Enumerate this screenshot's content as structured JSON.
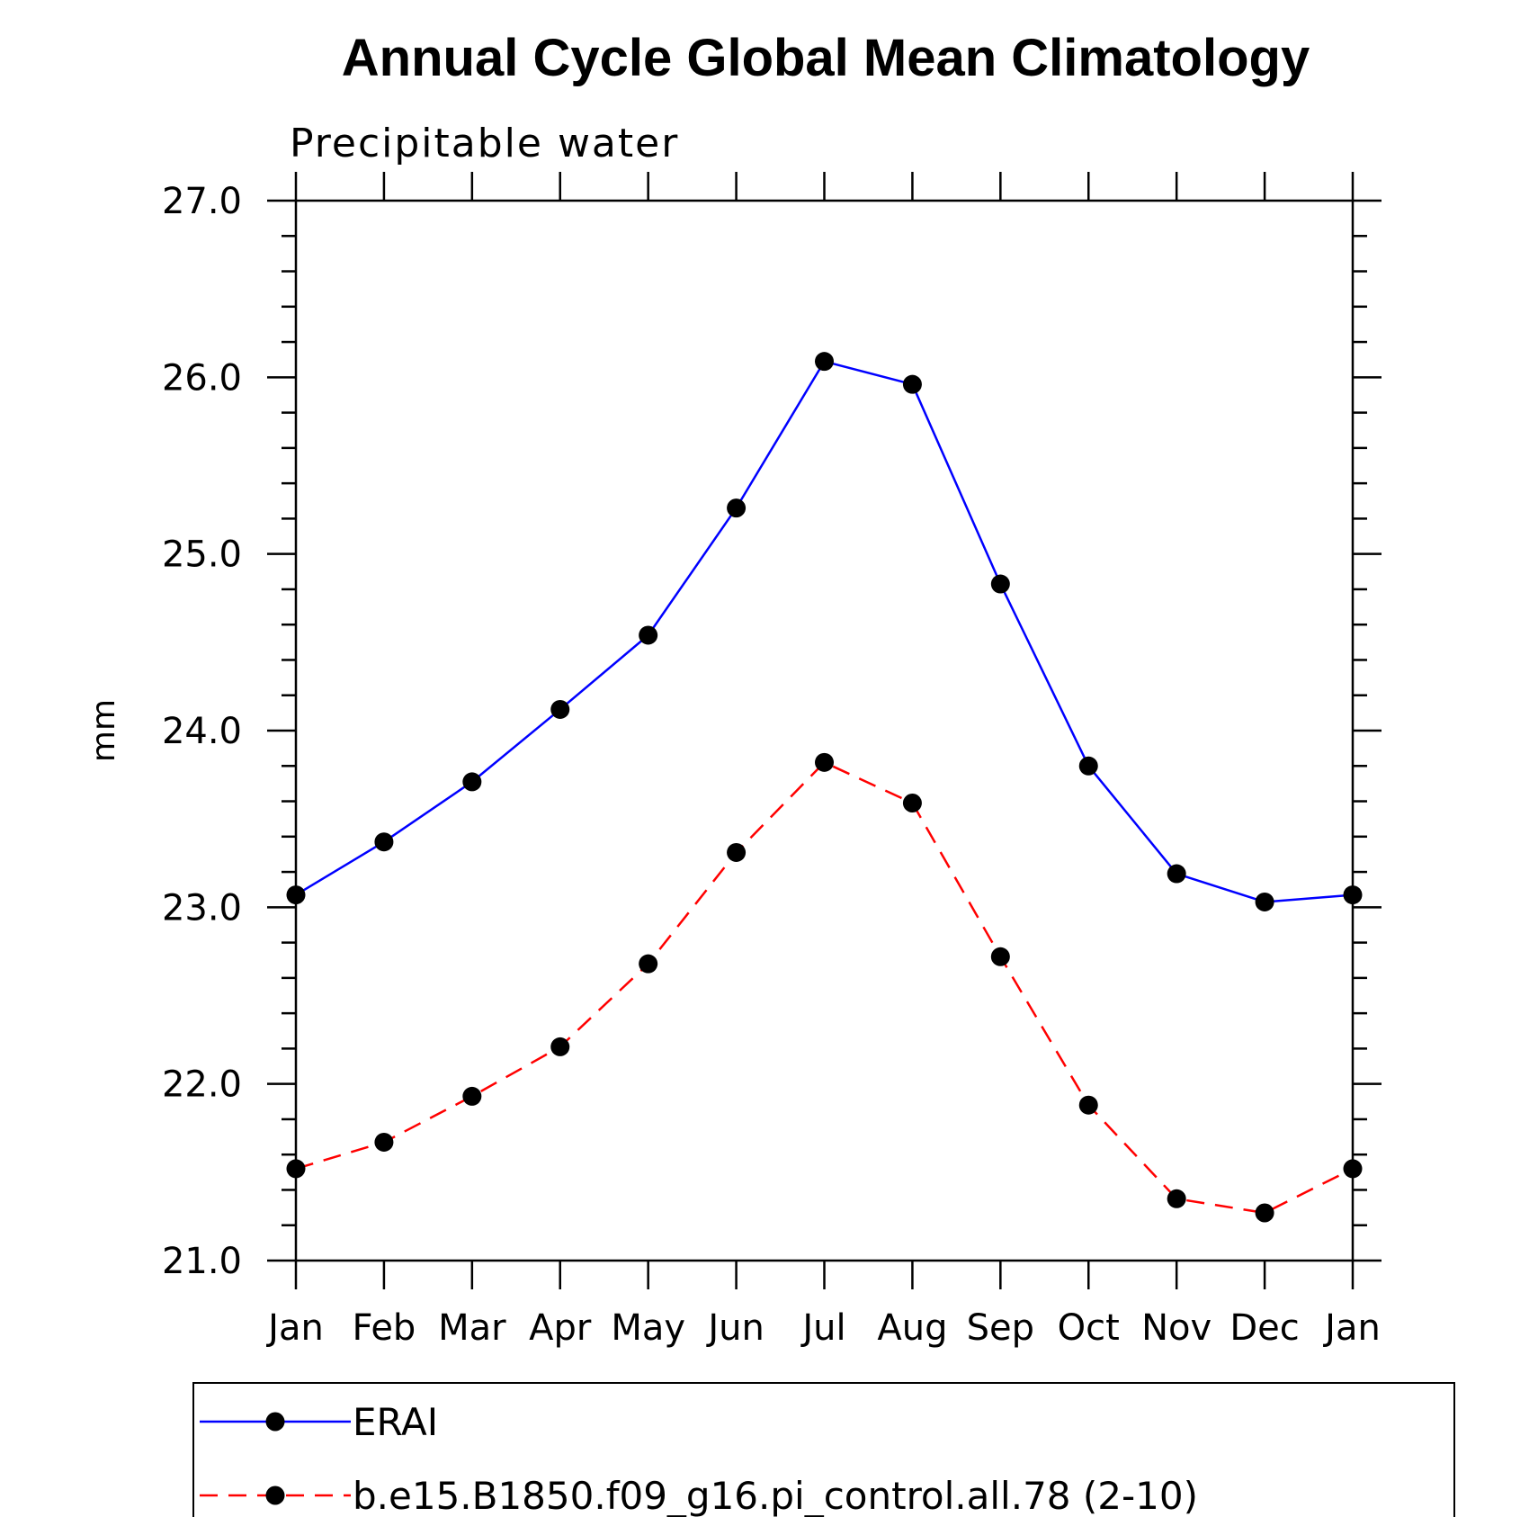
{
  "chart_data": {
    "type": "line",
    "title": "Annual Cycle Global Mean Climatology",
    "subtitle": "Precipitable water",
    "xlabel": "",
    "ylabel": "mm",
    "categories": [
      "Jan",
      "Feb",
      "Mar",
      "Apr",
      "May",
      "Jun",
      "Jul",
      "Aug",
      "Sep",
      "Oct",
      "Nov",
      "Dec",
      "Jan"
    ],
    "ylim": [
      21.0,
      27.0
    ],
    "yticks": [
      "21.0",
      "22.0",
      "23.0",
      "24.0",
      "25.0",
      "26.0",
      "27.0"
    ],
    "grid": false,
    "legend_position": "bottom",
    "series": [
      {
        "name": "ERAI",
        "color": "#0000ff",
        "dash": "solid",
        "marker": "filled-circle",
        "values": [
          23.07,
          23.37,
          23.71,
          24.12,
          24.54,
          25.26,
          26.09,
          25.96,
          24.83,
          23.8,
          23.19,
          23.03,
          23.07
        ]
      },
      {
        "name": "b.e15.B1850.f09_g16.pi_control.all.78 (2-10)",
        "color": "#ff0000",
        "dash": "dashed",
        "marker": "filled-circle",
        "values": [
          21.52,
          21.67,
          21.93,
          22.21,
          22.68,
          23.31,
          23.82,
          23.59,
          22.72,
          21.88,
          21.35,
          21.27,
          21.52
        ]
      }
    ]
  }
}
